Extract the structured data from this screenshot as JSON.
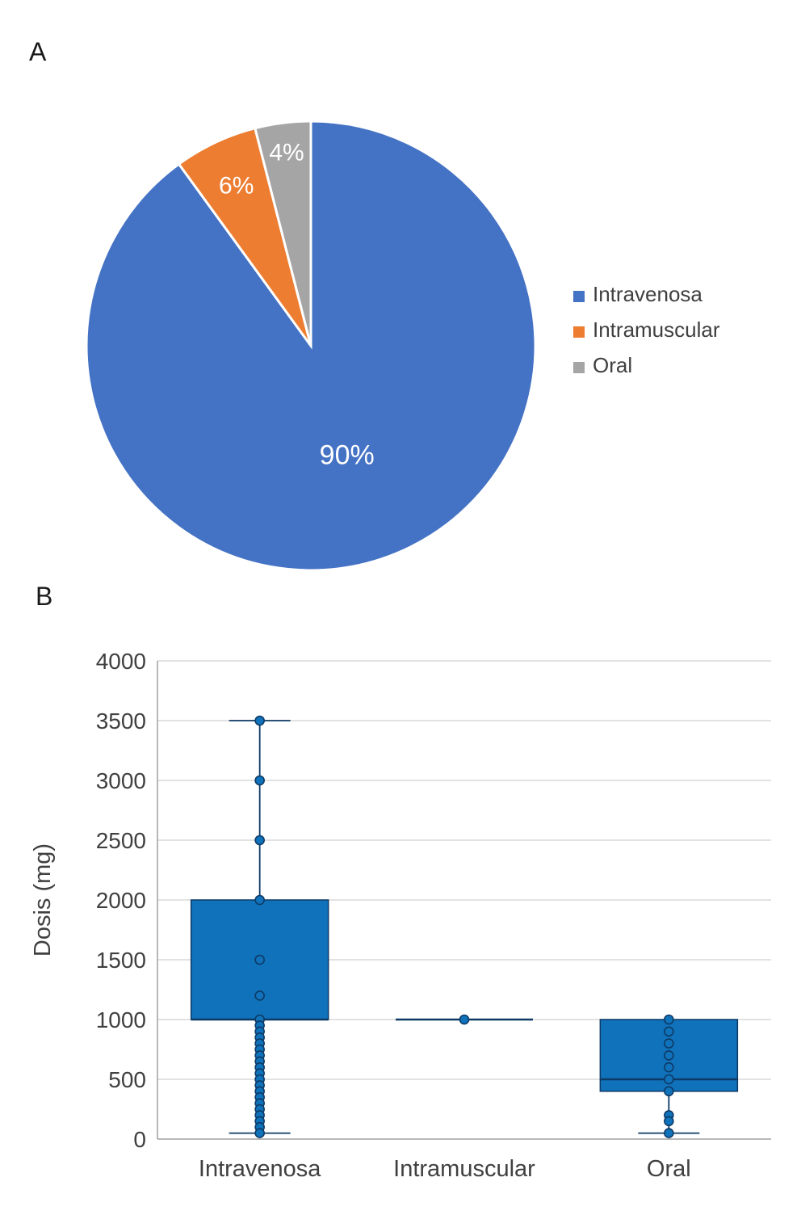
{
  "panels": {
    "a_label": "A",
    "b_label": "B"
  },
  "chart_data": [
    {
      "type": "pie",
      "panel": "A",
      "labels": [
        "Intravenosa",
        "Intramuscular",
        "Oral"
      ],
      "values": [
        90,
        6,
        4
      ],
      "slice_labels": [
        "90%",
        "6%",
        "4%"
      ],
      "colors": [
        "#4472C4",
        "#ED7D31",
        "#A5A5A5"
      ],
      "slice_label_color": "#ffffff",
      "legend_position": "right",
      "legend_text_color": "#404040",
      "start_angle_deg": 0,
      "direction": "clockwise"
    },
    {
      "type": "boxplot",
      "panel": "B",
      "title": "",
      "xlabel": "",
      "ylabel": "Dosis (mg)",
      "ylim": [
        0,
        4000
      ],
      "ytick_step": 500,
      "ytick_labels": [
        "0",
        "500",
        "1000",
        "1500",
        "2000",
        "2500",
        "3000",
        "3500",
        "4000"
      ],
      "grid": true,
      "box_color": "#1072BA",
      "box_outline_color": "#0d3a66",
      "gridline_color": "#d9d9d9",
      "axis_color": "#a0a0a0",
      "tick_text_color": "#404040",
      "categories": [
        "Intravenosa",
        "Intramuscular",
        "Oral"
      ],
      "series": [
        {
          "name": "Intravenosa",
          "min": 50,
          "q1": 1000,
          "median": 1000,
          "q3": 2000,
          "max": 3500,
          "points": [
            3500,
            3000,
            2500,
            2000,
            1500,
            1200,
            1000,
            950,
            900,
            850,
            800,
            750,
            700,
            650,
            600,
            550,
            500,
            450,
            400,
            350,
            300,
            250,
            200,
            150,
            100,
            50
          ]
        },
        {
          "name": "Intramuscular",
          "min": 1000,
          "q1": 1000,
          "median": 1000,
          "q3": 1000,
          "max": 1000,
          "points": [
            1000
          ]
        },
        {
          "name": "Oral",
          "min": 50,
          "q1": 400,
          "median": 500,
          "q3": 1000,
          "max": 1000,
          "points": [
            1000,
            900,
            800,
            700,
            600,
            500,
            400,
            200,
            150,
            50
          ]
        }
      ]
    }
  ]
}
